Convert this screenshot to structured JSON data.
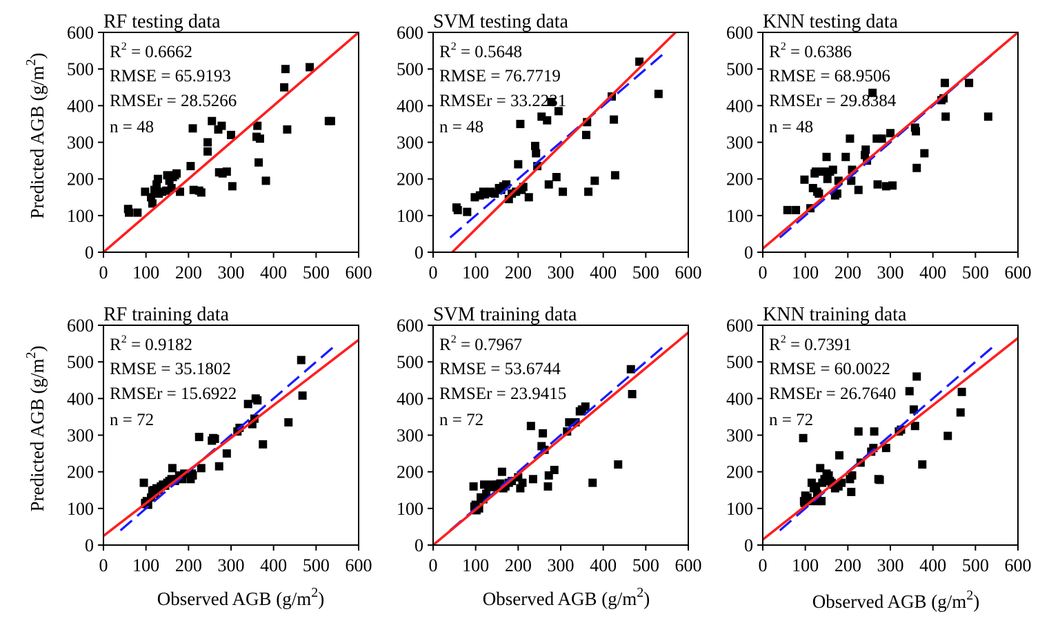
{
  "figure": {
    "ylabel": {
      "prefix": "Predicted AGB (g/m",
      "sup": "2",
      "suffix": ")"
    },
    "xlabel": {
      "prefix": "Observed AGB (g/m",
      "sup": "2",
      "suffix": ")"
    }
  },
  "chart_data": [
    {
      "type": "scatter",
      "title": "RF testing data",
      "xlim": [
        0,
        600
      ],
      "ylim": [
        0,
        600
      ],
      "xticks": [
        0,
        100,
        200,
        300,
        400,
        500,
        600
      ],
      "yticks": [
        0,
        100,
        200,
        300,
        400,
        500,
        600
      ],
      "stats": {
        "r2": "0.6662",
        "rmse": "65.9193",
        "rmser": "28.5266",
        "n": "48"
      },
      "fit_line": {
        "color": "#ff1f1f",
        "style": "solid",
        "from": [
          0,
          0
        ],
        "to": [
          600,
          600
        ]
      },
      "dashed_line": {
        "color": "#1a1aff",
        "style": "dashed",
        "from": [
          40,
          40
        ],
        "to": [
          540,
          540
        ]
      },
      "points": [
        [
          58,
          118
        ],
        [
          60,
          108
        ],
        [
          80,
          108
        ],
        [
          98,
          165
        ],
        [
          112,
          150
        ],
        [
          115,
          133
        ],
        [
          120,
          170
        ],
        [
          125,
          185
        ],
        [
          128,
          200
        ],
        [
          130,
          160
        ],
        [
          138,
          165
        ],
        [
          148,
          168
        ],
        [
          150,
          210
        ],
        [
          155,
          195
        ],
        [
          160,
          175
        ],
        [
          163,
          205
        ],
        [
          168,
          210
        ],
        [
          172,
          215
        ],
        [
          180,
          165
        ],
        [
          205,
          235
        ],
        [
          210,
          338
        ],
        [
          212,
          170
        ],
        [
          225,
          168
        ],
        [
          230,
          163
        ],
        [
          245,
          300
        ],
        [
          245,
          275
        ],
        [
          255,
          358
        ],
        [
          270,
          335
        ],
        [
          272,
          218
        ],
        [
          278,
          345
        ],
        [
          280,
          215
        ],
        [
          290,
          220
        ],
        [
          300,
          320
        ],
        [
          303,
          180
        ],
        [
          360,
          315
        ],
        [
          362,
          345
        ],
        [
          365,
          245
        ],
        [
          368,
          310
        ],
        [
          382,
          195
        ],
        [
          425,
          450
        ],
        [
          428,
          500
        ],
        [
          432,
          335
        ],
        [
          485,
          505
        ],
        [
          530,
          358
        ],
        [
          535,
          358
        ]
      ]
    },
    {
      "type": "scatter",
      "title": "SVM testing data",
      "xlim": [
        0,
        600
      ],
      "ylim": [
        0,
        600
      ],
      "xticks": [
        0,
        100,
        200,
        300,
        400,
        500,
        600
      ],
      "yticks": [
        0,
        100,
        200,
        300,
        400,
        500,
        600
      ],
      "stats": {
        "r2": "0.5648",
        "rmse": "76.7719",
        "rmser": "33.2231",
        "n": "48"
      },
      "fit_line": {
        "color": "#ff1f1f",
        "style": "solid",
        "from": [
          45,
          0
        ],
        "to": [
          570,
          600
        ]
      },
      "dashed_line": {
        "color": "#1a1aff",
        "style": "dashed",
        "from": [
          40,
          40
        ],
        "to": [
          540,
          540
        ]
      },
      "points": [
        [
          55,
          122
        ],
        [
          58,
          115
        ],
        [
          80,
          110
        ],
        [
          98,
          150
        ],
        [
          110,
          155
        ],
        [
          118,
          165
        ],
        [
          122,
          158
        ],
        [
          128,
          162
        ],
        [
          135,
          165
        ],
        [
          145,
          160
        ],
        [
          155,
          175
        ],
        [
          160,
          170
        ],
        [
          165,
          180
        ],
        [
          172,
          185
        ],
        [
          178,
          145
        ],
        [
          185,
          160
        ],
        [
          195,
          165
        ],
        [
          200,
          240
        ],
        [
          205,
          350
        ],
        [
          208,
          170
        ],
        [
          212,
          178
        ],
        [
          225,
          150
        ],
        [
          240,
          290
        ],
        [
          242,
          270
        ],
        [
          245,
          235
        ],
        [
          255,
          370
        ],
        [
          268,
          360
        ],
        [
          272,
          185
        ],
        [
          278,
          410
        ],
        [
          290,
          205
        ],
        [
          295,
          385
        ],
        [
          305,
          165
        ],
        [
          360,
          320
        ],
        [
          362,
          355
        ],
        [
          365,
          165
        ],
        [
          380,
          195
        ],
        [
          420,
          425
        ],
        [
          425,
          362
        ],
        [
          428,
          210
        ],
        [
          485,
          520
        ],
        [
          530,
          432
        ]
      ]
    },
    {
      "type": "scatter",
      "title": "KNN testing data",
      "xlim": [
        0,
        600
      ],
      "ylim": [
        0,
        600
      ],
      "xticks": [
        0,
        100,
        200,
        300,
        400,
        500,
        600
      ],
      "yticks": [
        0,
        100,
        200,
        300,
        400,
        500,
        600
      ],
      "stats": {
        "r2": "0.6386",
        "rmse": "68.9506",
        "rmser": "29.8384",
        "n": "48"
      },
      "fit_line": {
        "color": "#ff1f1f",
        "style": "solid",
        "from": [
          0,
          10
        ],
        "to": [
          600,
          600
        ]
      },
      "dashed_line": {
        "color": "#1a1aff",
        "style": "dashed",
        "from": [
          40,
          40
        ],
        "to": [
          540,
          540
        ]
      },
      "points": [
        [
          58,
          115
        ],
        [
          78,
          115
        ],
        [
          98,
          198
        ],
        [
          112,
          120
        ],
        [
          118,
          175
        ],
        [
          122,
          215
        ],
        [
          125,
          220
        ],
        [
          128,
          165
        ],
        [
          132,
          160
        ],
        [
          138,
          220
        ],
        [
          145,
          220
        ],
        [
          150,
          260
        ],
        [
          152,
          200
        ],
        [
          158,
          220
        ],
        [
          165,
          225
        ],
        [
          170,
          155
        ],
        [
          175,
          160
        ],
        [
          178,
          195
        ],
        [
          195,
          260
        ],
        [
          205,
          310
        ],
        [
          208,
          195
        ],
        [
          210,
          225
        ],
        [
          225,
          170
        ],
        [
          240,
          265
        ],
        [
          242,
          280
        ],
        [
          245,
          250
        ],
        [
          258,
          435
        ],
        [
          268,
          310
        ],
        [
          270,
          185
        ],
        [
          280,
          310
        ],
        [
          290,
          180
        ],
        [
          300,
          325
        ],
        [
          305,
          182
        ],
        [
          358,
          340
        ],
        [
          360,
          330
        ],
        [
          362,
          230
        ],
        [
          380,
          270
        ],
        [
          420,
          415
        ],
        [
          425,
          420
        ],
        [
          428,
          462
        ],
        [
          430,
          370
        ],
        [
          485,
          462
        ],
        [
          530,
          370
        ]
      ]
    },
    {
      "type": "scatter",
      "title": "RF training data",
      "xlim": [
        0,
        600
      ],
      "ylim": [
        0,
        600
      ],
      "xticks": [
        0,
        100,
        200,
        300,
        400,
        500,
        600
      ],
      "yticks": [
        0,
        100,
        200,
        300,
        400,
        500,
        600
      ],
      "stats": {
        "r2": "0.9182",
        "rmse": "35.1802",
        "rmser": "15.6922",
        "n": "72"
      },
      "fit_line": {
        "color": "#ff1f1f",
        "style": "solid",
        "from": [
          0,
          25
        ],
        "to": [
          600,
          560
        ]
      },
      "dashed_line": {
        "color": "#1a1aff",
        "style": "dashed",
        "from": [
          40,
          40
        ],
        "to": [
          540,
          540
        ]
      },
      "points": [
        [
          95,
          170
        ],
        [
          98,
          115
        ],
        [
          100,
          112
        ],
        [
          102,
          120
        ],
        [
          105,
          110
        ],
        [
          112,
          130
        ],
        [
          115,
          148
        ],
        [
          118,
          150
        ],
        [
          122,
          140
        ],
        [
          125,
          155
        ],
        [
          130,
          150
        ],
        [
          135,
          160
        ],
        [
          140,
          165
        ],
        [
          145,
          162
        ],
        [
          150,
          170
        ],
        [
          155,
          175
        ],
        [
          160,
          180
        ],
        [
          162,
          210
        ],
        [
          168,
          175
        ],
        [
          172,
          180
        ],
        [
          178,
          190
        ],
        [
          185,
          180
        ],
        [
          190,
          195
        ],
        [
          205,
          180
        ],
        [
          208,
          195
        ],
        [
          210,
          190
        ],
        [
          225,
          295
        ],
        [
          230,
          210
        ],
        [
          255,
          285
        ],
        [
          258,
          292
        ],
        [
          262,
          290
        ],
        [
          272,
          215
        ],
        [
          290,
          250
        ],
        [
          315,
          310
        ],
        [
          320,
          320
        ],
        [
          340,
          385
        ],
        [
          350,
          330
        ],
        [
          355,
          345
        ],
        [
          358,
          400
        ],
        [
          362,
          395
        ],
        [
          375,
          275
        ],
        [
          435,
          335
        ],
        [
          465,
          505
        ],
        [
          468,
          408
        ]
      ]
    },
    {
      "type": "scatter",
      "title": "SVM training data",
      "xlim": [
        0,
        600
      ],
      "ylim": [
        0,
        600
      ],
      "xticks": [
        0,
        100,
        200,
        300,
        400,
        500,
        600
      ],
      "yticks": [
        0,
        100,
        200,
        300,
        400,
        500,
        600
      ],
      "stats": {
        "r2": "0.7967",
        "rmse": "53.6744",
        "rmser": "23.9415",
        "n": "72"
      },
      "fit_line": {
        "color": "#ff1f1f",
        "style": "solid",
        "from": [
          0,
          0
        ],
        "to": [
          600,
          580
        ]
      },
      "dashed_line": {
        "color": "#1a1aff",
        "style": "dashed",
        "from": [
          40,
          40
        ],
        "to": [
          540,
          540
        ]
      },
      "points": [
        [
          95,
          160
        ],
        [
          97,
          105
        ],
        [
          98,
          100
        ],
        [
          100,
          110
        ],
        [
          102,
          95
        ],
        [
          108,
          100
        ],
        [
          112,
          130
        ],
        [
          118,
          125
        ],
        [
          120,
          165
        ],
        [
          125,
          140
        ],
        [
          130,
          160
        ],
        [
          138,
          165
        ],
        [
          145,
          158
        ],
        [
          150,
          165
        ],
        [
          158,
          168
        ],
        [
          162,
          200
        ],
        [
          165,
          155
        ],
        [
          170,
          160
        ],
        [
          178,
          170
        ],
        [
          185,
          175
        ],
        [
          200,
          185
        ],
        [
          205,
          155
        ],
        [
          210,
          170
        ],
        [
          230,
          325
        ],
        [
          235,
          180
        ],
        [
          255,
          270
        ],
        [
          258,
          305
        ],
        [
          262,
          260
        ],
        [
          270,
          160
        ],
        [
          272,
          190
        ],
        [
          285,
          205
        ],
        [
          315,
          310
        ],
        [
          320,
          335
        ],
        [
          335,
          335
        ],
        [
          345,
          365
        ],
        [
          350,
          370
        ],
        [
          358,
          378
        ],
        [
          375,
          170
        ],
        [
          435,
          220
        ],
        [
          465,
          480
        ],
        [
          468,
          412
        ]
      ]
    },
    {
      "type": "scatter",
      "title": "KNN training data",
      "xlim": [
        0,
        600
      ],
      "ylim": [
        0,
        600
      ],
      "xticks": [
        0,
        100,
        200,
        300,
        400,
        500,
        600
      ],
      "yticks": [
        0,
        100,
        200,
        300,
        400,
        500,
        600
      ],
      "stats": {
        "r2": "0.7391",
        "rmse": "60.0022",
        "rmser": "26.7640",
        "n": "72"
      },
      "fit_line": {
        "color": "#ff1f1f",
        "style": "solid",
        "from": [
          0,
          15
        ],
        "to": [
          600,
          565
        ]
      },
      "dashed_line": {
        "color": "#1a1aff",
        "style": "dashed",
        "from": [
          40,
          40
        ],
        "to": [
          540,
          540
        ]
      },
      "points": [
        [
          95,
          292
        ],
        [
          97,
          120
        ],
        [
          98,
          115
        ],
        [
          100,
          135
        ],
        [
          102,
          125
        ],
        [
          105,
          130
        ],
        [
          112,
          120
        ],
        [
          115,
          170
        ],
        [
          120,
          155
        ],
        [
          125,
          160
        ],
        [
          128,
          140
        ],
        [
          130,
          120
        ],
        [
          135,
          210
        ],
        [
          138,
          120
        ],
        [
          140,
          170
        ],
        [
          145,
          180
        ],
        [
          150,
          195
        ],
        [
          155,
          190
        ],
        [
          158,
          175
        ],
        [
          162,
          170
        ],
        [
          165,
          165
        ],
        [
          170,
          155
        ],
        [
          178,
          160
        ],
        [
          180,
          245
        ],
        [
          185,
          170
        ],
        [
          205,
          180
        ],
        [
          208,
          145
        ],
        [
          210,
          190
        ],
        [
          225,
          310
        ],
        [
          230,
          225
        ],
        [
          255,
          255
        ],
        [
          260,
          265
        ],
        [
          262,
          310
        ],
        [
          272,
          180
        ],
        [
          275,
          178
        ],
        [
          290,
          265
        ],
        [
          320,
          310
        ],
        [
          325,
          315
        ],
        [
          345,
          420
        ],
        [
          355,
          370
        ],
        [
          358,
          325
        ],
        [
          362,
          460
        ],
        [
          375,
          220
        ],
        [
          435,
          298
        ],
        [
          465,
          362
        ],
        [
          468,
          418
        ]
      ]
    }
  ]
}
